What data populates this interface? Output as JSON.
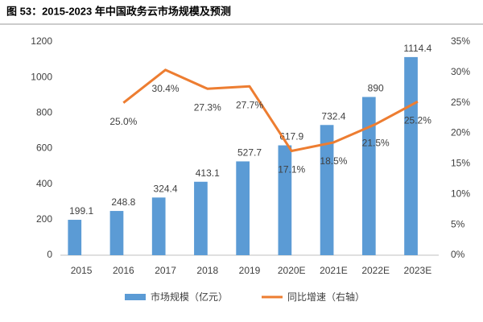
{
  "chart_data": {
    "type": "bar",
    "title": "图 53：2015-2023 年中国政务云市场规模及预测",
    "categories": [
      "2015",
      "2016",
      "2017",
      "2018",
      "2019",
      "2020E",
      "2021E",
      "2022E",
      "2023E"
    ],
    "series": [
      {
        "name": "市场规模（亿元）",
        "type": "bar",
        "color": "#5b9bd5",
        "values": [
          199.1,
          248.8,
          324.4,
          413.1,
          527.7,
          617.9,
          732.4,
          890,
          1114.4
        ]
      },
      {
        "name": "同比增速（右轴）",
        "type": "line",
        "axis": "y2",
        "color": "#ed7d31",
        "values": [
          null,
          25.0,
          30.4,
          27.3,
          27.7,
          17.1,
          18.5,
          21.5,
          25.2
        ],
        "value_labels": [
          null,
          "25.0%",
          "30.4%",
          "27.3%",
          "27.7%",
          "17.1%",
          "18.5%",
          "21.5%",
          "25.2%"
        ]
      }
    ],
    "ylim": [
      0,
      1200
    ],
    "yticks": [
      0,
      200,
      400,
      600,
      800,
      1000,
      1200
    ],
    "y2lim": [
      0,
      35
    ],
    "y2ticks": [
      {
        "value": 0,
        "label": "0%"
      },
      {
        "value": 5,
        "label": "5%"
      },
      {
        "value": 10,
        "label": "10%"
      },
      {
        "value": 15,
        "label": "15%"
      },
      {
        "value": 20,
        "label": "20%"
      },
      {
        "value": 25,
        "label": "25%"
      },
      {
        "value": 30,
        "label": "30%"
      },
      {
        "value": 35,
        "label": "35%"
      }
    ],
    "legend": "bottom"
  }
}
